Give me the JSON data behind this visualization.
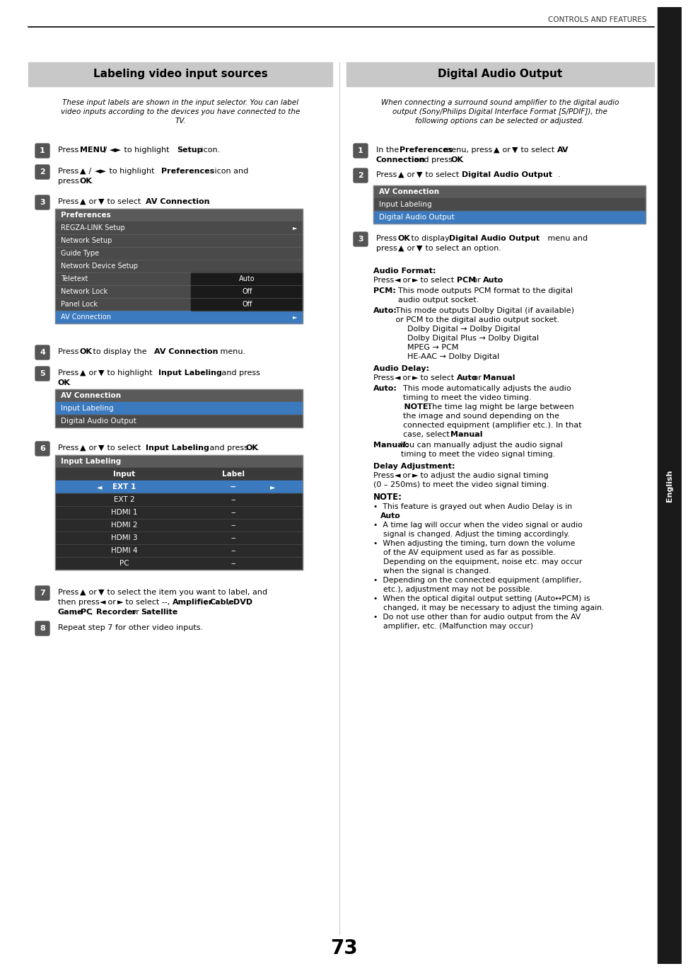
{
  "page_number": "73",
  "header_text": "CONTROLS AND FEATURES",
  "sidebar_text": "English",
  "left_title": "Labeling video input sources",
  "right_title": "Digital Audio Output",
  "left_intro": "These input labels are shown in the input selector. You can label\nvideo inputs according to the devices you have connected to the\nTV.",
  "right_intro": "When connecting a surround sound amplifier to the digital audio\noutput (Sony/Philips Digital Interface Format [S/PDIF]), the\nfollowing options can be selected or adjusted.",
  "bg_color": "#ffffff",
  "header_line_color": "#000000",
  "sidebar_bg": "#1a1a1a",
  "section_title_bg": "#c8c8c8",
  "left_steps": [
    {
      "num": "1",
      "text": "Press MENU / ◄► to highlight Setup icon."
    },
    {
      "num": "2",
      "text": "Press ▲ / ◄► to highlight Preferences icon and\npress OK."
    },
    {
      "num": "3",
      "text": "Press ▲ or ▼ to select AV Connection."
    },
    {
      "num": "4",
      "text": "Press OK to display the AV Connection menu."
    },
    {
      "num": "5",
      "text": "Press ▲ or ▼ to highlight Input Labeling and press\nOK."
    },
    {
      "num": "6",
      "text": "Press ▲ or ▼ to select Input Labeling and press OK."
    },
    {
      "num": "7",
      "text": "Press ▲ or ▼ to select the item you want to label, and\nthen press ◄ or ► to select --, Amplifier, Cable, DVD,\nGame, PC, Recorder or Satellite."
    },
    {
      "num": "8",
      "text": "Repeat step 7 for other video inputs."
    }
  ],
  "right_steps": [
    {
      "num": "1",
      "text": "In the Preferences menu, press ▲ or ▼ to select AV\nConnection and press OK."
    },
    {
      "num": "2",
      "text": "Press ▲ or ▼ to select Digital Audio Output."
    }
  ],
  "prefs_table": {
    "header": "Preferences",
    "rows": [
      {
        "label": "REGZA-LINK Setup",
        "value": "",
        "value_bg": "",
        "highlighted": false,
        "has_arrow_right": true
      },
      {
        "label": "Network Setup",
        "value": "",
        "value_bg": "",
        "highlighted": false
      },
      {
        "label": "Guide Type",
        "value": "",
        "value_bg": "",
        "highlighted": false
      },
      {
        "label": "Network Device Setup",
        "value": "",
        "value_bg": "",
        "highlighted": false
      },
      {
        "label": "Teletext",
        "value": "Auto",
        "value_bg": "#1a1a1a",
        "highlighted": false
      },
      {
        "label": "Network Lock",
        "value": "Off",
        "value_bg": "#1a1a1a",
        "highlighted": false
      },
      {
        "label": "Panel Lock",
        "value": "Off",
        "value_bg": "#1a1a1a",
        "highlighted": false
      },
      {
        "label": "AV Connection",
        "value": "",
        "value_bg": "",
        "highlighted": true,
        "has_arrow_right": true
      }
    ]
  },
  "av_table_left": {
    "header": "AV Connection",
    "rows": [
      {
        "label": "Input Labeling",
        "highlighted": true
      },
      {
        "label": "Digital Audio Output",
        "highlighted": false
      }
    ]
  },
  "input_labeling_table": {
    "header": "Input Labeling",
    "col1": "Input",
    "col2": "Label",
    "rows": [
      {
        "input": "EXT 1",
        "label": "--",
        "highlighted": true
      },
      {
        "input": "EXT 2",
        "label": "--",
        "highlighted": false
      },
      {
        "input": "HDMI 1",
        "label": "--",
        "highlighted": false
      },
      {
        "input": "HDMI 2",
        "label": "--",
        "highlighted": false
      },
      {
        "input": "HDMI 3",
        "label": "--",
        "highlighted": false
      },
      {
        "input": "HDMI 4",
        "label": "--",
        "highlighted": false
      },
      {
        "input": "PC",
        "label": "--",
        "highlighted": false
      }
    ]
  },
  "av_table_right": {
    "header": "AV Connection",
    "rows": [
      {
        "label": "Input Labeling",
        "highlighted": false
      },
      {
        "label": "Digital Audio Output",
        "highlighted": true
      }
    ]
  },
  "right_content": {
    "audio_format_title": "Audio Format:",
    "audio_format_body": "Press ◄ or ► to select PCM or Auto.",
    "pcm_label": "PCM:",
    "pcm_body": "  This mode outputs PCM format to the digital\n  audio output socket.",
    "auto_label": "Auto:",
    "auto_body": " This mode outputs Dolby Digital (if available)\n or PCM to the digital audio output socket.\n     Dolby Digital → Dolby Digital\n     Dolby Digital Plus → Dolby Digital\n     MPEG → PCM\n     HE-AAC → Dolby Digital",
    "audio_delay_title": "Audio Delay:",
    "audio_delay_body": "Press ◄ or ► to select Auto or Manual.",
    "auto2_label": "Auto:",
    "auto2_body": "  This mode automatically adjusts the audio\n  timing to meet the video timing.\n  NOTE: The time lag might be large between\n  the image and sound depending on the\n  connected equipment (amplifier etc.). In that\n  case, select Manual.",
    "manual_label": "Manual:",
    "manual_body": "You can manually adjust the audio signal\n        timing to meet the video signal timing.",
    "delay_adj_title": "Delay Adjustment:",
    "delay_adj_body": "Press ◄ or ► to adjust the audio signal timing\n(0 – 250ms) to meet the video signal timing.",
    "note_title": "NOTE:",
    "notes": [
      "•  This feature is grayed out when Audio Delay is in\n    Auto.",
      "•  A time lag will occur when the video signal or audio\n    signal is changed. Adjust the timing accordingly.",
      "•  When adjusting the timing, turn down the volume\n    of the AV equipment used as far as possible.\n    Depending on the equipment, noise etc. may occur\n    when the signal is changed.",
      "•  Depending on the connected equipment (amplifier,\n    etc.), adjustment may not be possible.",
      "•  When the optical digital output setting (Auto↔PCM) is\n    changed, it may be necessary to adjust the timing again.",
      "•  Do not use other than for audio output from the AV\n    amplifier, etc. (Malfunction may occur)"
    ]
  },
  "highlight_blue": "#3c7abf",
  "table_bg_dark": "#4a4a4a",
  "table_bg_darker": "#3a3a3a",
  "table_bg_header": "#5a5a5a",
  "row_bg_dark": "#2a2a2a"
}
